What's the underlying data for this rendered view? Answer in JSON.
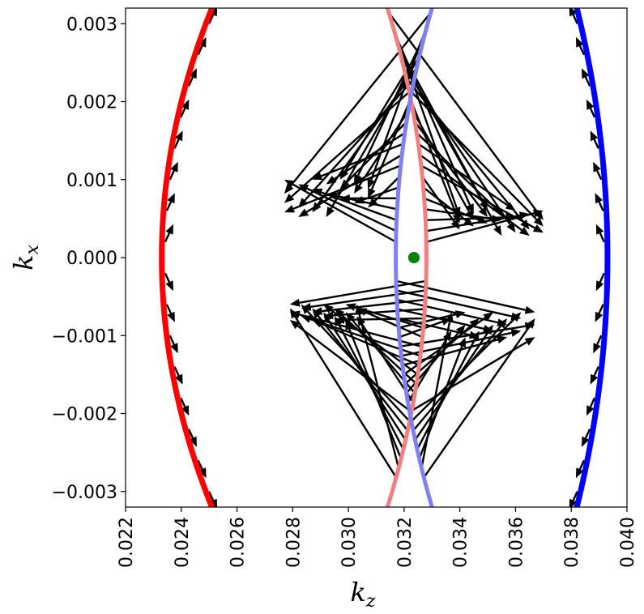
{
  "chart_data": {
    "type": "scatter",
    "xlabel_main": "k",
    "xlabel_sub": "z",
    "ylabel_main": "k",
    "ylabel_sub": "x",
    "xlim": [
      0.022,
      0.04
    ],
    "ylim": [
      -0.0032,
      0.0032
    ],
    "x_ticks": [
      "0.022",
      "0.024",
      "0.026",
      "0.028",
      "0.030",
      "0.032",
      "0.034",
      "0.036",
      "0.038",
      "0.040"
    ],
    "x_tick_values": [
      0.022,
      0.024,
      0.026,
      0.028,
      0.03,
      0.032,
      0.034,
      0.036,
      0.038,
      0.04
    ],
    "y_ticks": [
      "0.003",
      "0.002",
      "0.001",
      "0.000",
      "−0.001",
      "−0.002",
      "−0.003"
    ],
    "y_tick_values": [
      0.003,
      0.002,
      0.001,
      0.0,
      -0.001,
      -0.002,
      -0.003
    ],
    "grid": false,
    "series": [
      {
        "color": "#ff0000",
        "curve": {
          "vertex_kz": 0.0233,
          "edge_kz": 0.0251,
          "edge_kx": 0.0032
        }
      },
      {
        "color": "#0000ff",
        "curve": {
          "vertex_kz": 0.0393,
          "edge_kz": 0.0382,
          "edge_kx": 0.0032
        }
      },
      {
        "color": "#f08080",
        "curve": {
          "vertex_kz": 0.0328,
          "edge_kz": 0.0314,
          "edge_kx": 0.0032
        }
      },
      {
        "color": "#8080f0",
        "curve": {
          "vertex_kz": 0.0317,
          "edge_kz": 0.033,
          "edge_kx": 0.0032
        }
      }
    ],
    "arrow_color": "#000000",
    "marker": {
      "kz": 0.03235,
      "kx": 0.0,
      "color": "#008000"
    }
  }
}
